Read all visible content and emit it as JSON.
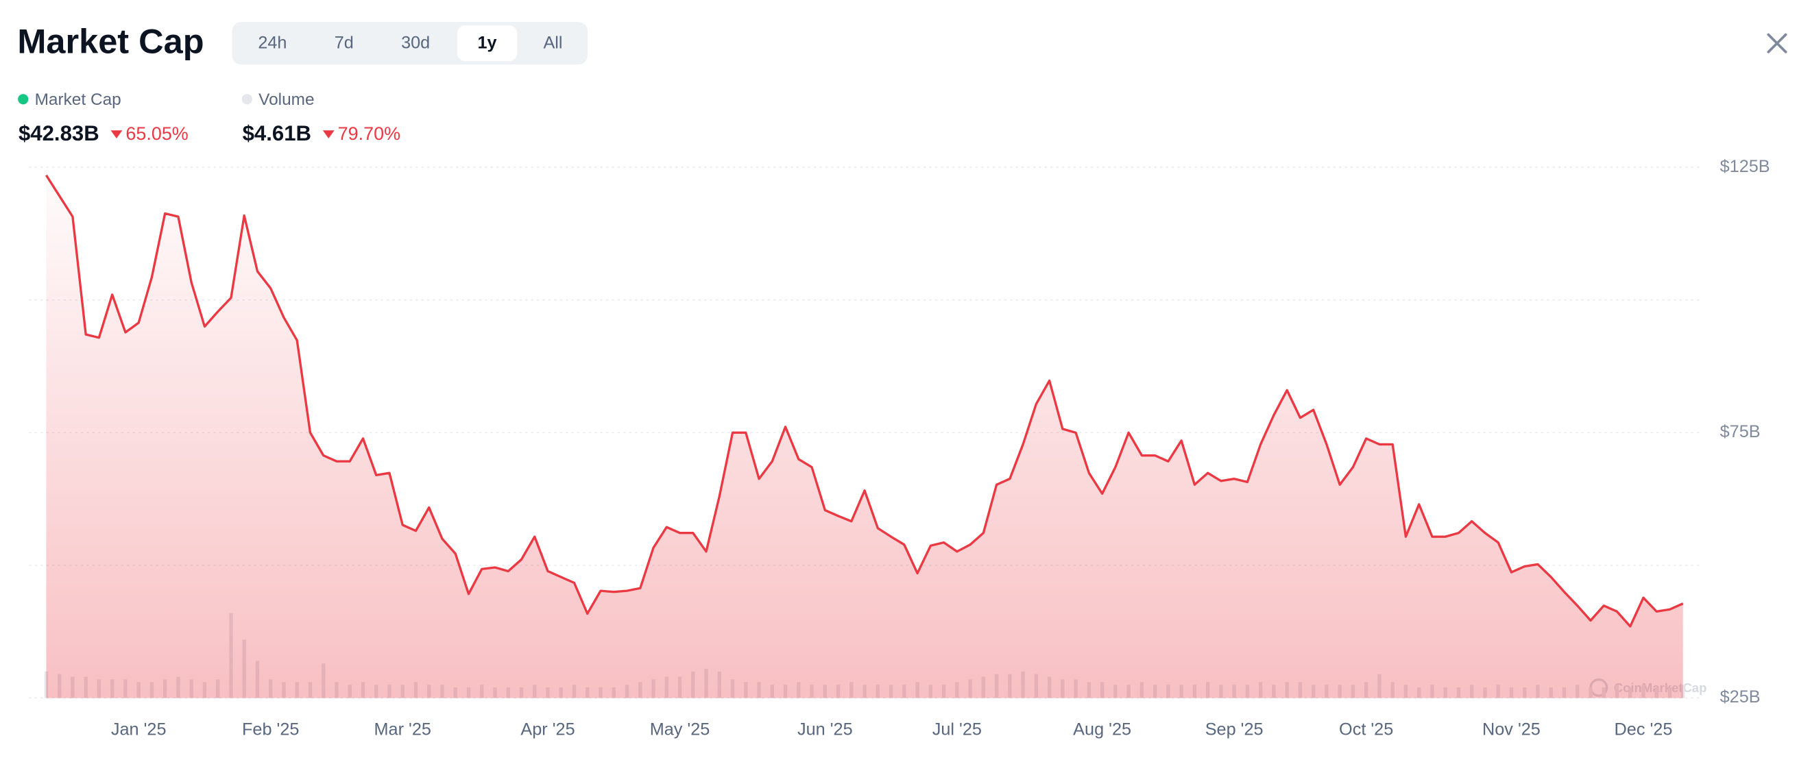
{
  "header": {
    "title": "Market Cap",
    "tabs": [
      "24h",
      "7d",
      "30d",
      "1y",
      "All"
    ],
    "active_tab": 3
  },
  "watermark": "CoinMarketCap",
  "chart_data": {
    "type": "line",
    "categories": [
      null,
      null,
      null,
      null,
      null,
      null,
      null,
      "Jan '25",
      null,
      null,
      null,
      null,
      null,
      null,
      null,
      null,
      null,
      "Feb '25",
      null,
      null,
      null,
      null,
      null,
      null,
      null,
      null,
      null,
      "Mar '25",
      null,
      null,
      null,
      null,
      null,
      null,
      null,
      null,
      null,
      null,
      "Apr '25",
      null,
      null,
      null,
      null,
      null,
      null,
      null,
      null,
      null,
      "May '25",
      null,
      null,
      null,
      null,
      null,
      null,
      null,
      null,
      null,
      null,
      "Jun '25",
      null,
      null,
      null,
      null,
      null,
      null,
      null,
      null,
      null,
      "Jul '25",
      null,
      null,
      null,
      null,
      null,
      null,
      null,
      null,
      null,
      null,
      "Aug '25",
      null,
      null,
      null,
      null,
      null,
      null,
      null,
      null,
      null,
      "Sep '25",
      null,
      null,
      null,
      null,
      null,
      null,
      null,
      null,
      null,
      "Oct '25",
      null,
      null,
      null,
      null,
      null,
      null,
      null,
      null,
      null,
      null,
      "Nov '25",
      null,
      null,
      null,
      null,
      null,
      null,
      null,
      null,
      null,
      "Dec '25",
      null,
      null,
      null
    ],
    "series": [
      {
        "name": "Market Cap",
        "color": "#ea3943",
        "dot_color": "#16c784",
        "summary_value": "$42.83B",
        "change": "65.05%",
        "values": [
          123.5,
          119.6,
          115.7,
          93.5,
          92.9,
          101,
          93.9,
          95.7,
          104.3,
          116.3,
          115.7,
          103.3,
          95,
          97.8,
          100.4,
          115.9,
          105.4,
          102.2,
          96.7,
          92.4,
          75,
          70.7,
          69.6,
          69.6,
          73.9,
          67,
          67.4,
          57.6,
          56.5,
          60.9,
          55,
          52.2,
          44.6,
          49.3,
          49.6,
          48.9,
          51.1,
          55.4,
          48.9,
          47.8,
          46.7,
          40.9,
          45.2,
          45,
          45.2,
          45.7,
          53.3,
          57.2,
          56.1,
          56.1,
          52.6,
          63,
          75,
          75,
          66.3,
          69.6,
          76.1,
          70,
          68.5,
          60.4,
          59.3,
          58.3,
          64.1,
          57,
          55.4,
          53.9,
          48.5,
          53.7,
          54.3,
          52.6,
          53.9,
          56.1,
          65.2,
          66.3,
          72.8,
          80.4,
          84.8,
          75.7,
          75,
          67.4,
          63.5,
          68.5,
          75,
          70.7,
          70.7,
          69.6,
          73.5,
          65.2,
          67.4,
          65.9,
          66.3,
          65.7,
          72.8,
          78.3,
          83,
          77.8,
          79.3,
          72.8,
          65.2,
          68.5,
          73.9,
          72.8,
          72.8,
          55.4,
          61.5,
          55.4,
          55.4,
          56.1,
          58.3,
          56.1,
          54.3,
          48.7,
          49.8,
          50.2,
          47.8,
          45,
          42.4,
          39.6,
          42.4,
          41.3,
          38.5,
          43.9,
          41.3,
          41.7,
          42.8
        ]
      },
      {
        "name": "Volume",
        "color": "#e3e6ea",
        "dot_color": "#e5e7eb",
        "summary_value": "$4.61B",
        "change": "79.70%",
        "axis": "y2",
        "values": [
          10,
          9,
          8,
          8,
          7,
          7,
          7,
          6,
          6,
          7,
          8,
          7,
          6,
          7,
          32,
          22,
          14,
          7,
          6,
          6,
          6,
          13,
          6,
          5,
          6,
          5,
          5,
          5,
          6,
          5,
          5,
          4,
          4,
          5,
          4,
          4,
          4,
          5,
          4,
          4,
          5,
          4,
          4,
          4,
          5,
          6,
          7,
          8,
          8,
          10,
          11,
          10,
          7,
          6,
          6,
          5,
          5,
          6,
          5,
          5,
          5,
          6,
          5,
          5,
          5,
          5,
          6,
          5,
          5,
          6,
          7,
          8,
          9,
          9,
          10,
          9,
          8,
          7,
          7,
          6,
          6,
          5,
          5,
          6,
          5,
          5,
          5,
          5,
          6,
          5,
          5,
          5,
          6,
          5,
          6,
          6,
          5,
          5,
          5,
          5,
          6,
          9,
          6,
          5,
          4,
          5,
          4,
          4,
          5,
          4,
          5,
          4,
          4,
          5,
          4,
          4,
          5,
          4,
          4,
          5,
          4,
          5,
          4,
          4,
          5
        ]
      }
    ],
    "ylim": [
      25,
      125
    ],
    "yticks": [
      {
        "value": 25,
        "label": "$25B"
      },
      {
        "value": 75,
        "label": "$75B"
      },
      {
        "value": 125,
        "label": "$125B"
      }
    ],
    "ygrid": [
      25,
      50,
      75,
      100,
      125
    ],
    "y2lim": [
      0,
      200
    ],
    "grid": true
  }
}
